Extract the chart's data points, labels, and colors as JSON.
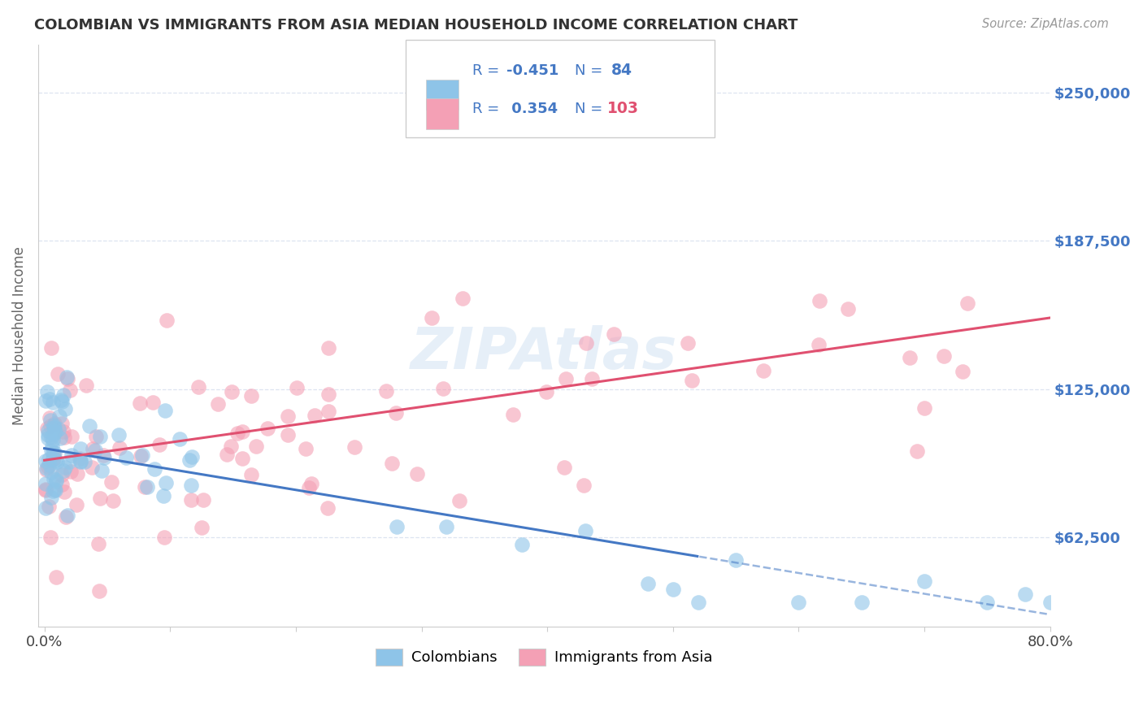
{
  "title": "COLOMBIAN VS IMMIGRANTS FROM ASIA MEDIAN HOUSEHOLD INCOME CORRELATION CHART",
  "source": "Source: ZipAtlas.com",
  "ylabel": "Median Household Income",
  "yticks": [
    62500,
    125000,
    187500,
    250000
  ],
  "ytick_labels": [
    "$62,500",
    "$125,000",
    "$187,500",
    "$250,000"
  ],
  "xlim": [
    -0.005,
    0.8
  ],
  "ylim": [
    25000,
    270000
  ],
  "legend_label1": "Colombians",
  "legend_label2": "Immigrants from Asia",
  "R1": -0.451,
  "N1": 84,
  "R2": 0.354,
  "N2": 103,
  "color_blue": "#8ec4e8",
  "color_pink": "#f4a0b5",
  "color_blue_line": "#4478c4",
  "color_pink_line": "#e05070",
  "color_blue_text": "#4478c4",
  "color_pink_text": "#e05070",
  "color_all_legend_text": "#4478c4",
  "watermark": "ZIPAtlas",
  "background_color": "#ffffff",
  "grid_color": "#dde4f0",
  "line1_x0": 0.0,
  "line1_y0": 100000,
  "line1_x1": 0.8,
  "line1_y1": 30000,
  "line2_x0": 0.0,
  "line2_y0": 95000,
  "line2_x1": 0.8,
  "line2_y1": 155000,
  "line1_solid_end": 0.52,
  "line1_dash_start": 0.52
}
